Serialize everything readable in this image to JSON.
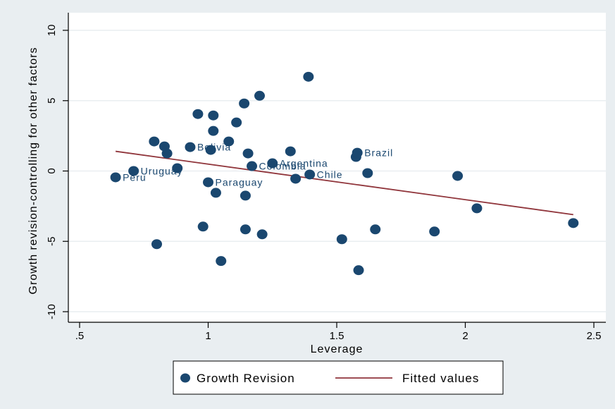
{
  "chart_data": {
    "type": "scatter",
    "xlabel": "Leverage",
    "ylabel": "Growth revision-controlling for other factors",
    "xlim": [
      0.5,
      2.5
    ],
    "ylim": [
      -10,
      10
    ],
    "x_ticks": [
      0.5,
      1,
      1.5,
      2,
      2.5
    ],
    "x_tick_labels": [
      ".5",
      "1",
      "1.5",
      "2",
      "2.5"
    ],
    "y_ticks": [
      -10,
      -5,
      0,
      5,
      10
    ],
    "y_tick_labels": [
      "-10",
      "-5",
      "0",
      "5",
      "10"
    ],
    "grid": "horizontal",
    "legend_position": "bottom",
    "colors": {
      "points": "#1a476f",
      "fit": "#90353b",
      "plot_bg": "#ffffff",
      "outer_bg": "#e9eef1"
    },
    "series": [
      {
        "name": "Growth Revision",
        "kind": "scatter",
        "points": [
          {
            "x": 0.64,
            "y": -0.45,
            "label": "Peru"
          },
          {
            "x": 0.71,
            "y": 0.0,
            "label": "Uruguay"
          },
          {
            "x": 0.79,
            "y": 2.1
          },
          {
            "x": 0.8,
            "y": -5.2
          },
          {
            "x": 0.83,
            "y": 1.75
          },
          {
            "x": 0.84,
            "y": 1.25
          },
          {
            "x": 0.88,
            "y": 0.2
          },
          {
            "x": 0.93,
            "y": 1.7,
            "label": "Bolivia"
          },
          {
            "x": 0.96,
            "y": 4.05
          },
          {
            "x": 0.98,
            "y": -3.95
          },
          {
            "x": 1.0,
            "y": -0.8,
            "label": "Paraguay"
          },
          {
            "x": 1.01,
            "y": 1.5
          },
          {
            "x": 1.02,
            "y": 3.95
          },
          {
            "x": 1.02,
            "y": 2.85
          },
          {
            "x": 1.03,
            "y": -1.55
          },
          {
            "x": 1.05,
            "y": -6.4
          },
          {
            "x": 1.08,
            "y": 2.1
          },
          {
            "x": 1.11,
            "y": 3.45
          },
          {
            "x": 1.14,
            "y": 4.8
          },
          {
            "x": 1.145,
            "y": -4.15
          },
          {
            "x": 1.145,
            "y": -1.75
          },
          {
            "x": 1.155,
            "y": 1.25
          },
          {
            "x": 1.17,
            "y": 0.35,
            "label": "Colombia"
          },
          {
            "x": 1.2,
            "y": 5.35
          },
          {
            "x": 1.21,
            "y": -4.5
          },
          {
            "x": 1.25,
            "y": 0.55,
            "label": "Argentina"
          },
          {
            "x": 1.32,
            "y": 1.4
          },
          {
            "x": 1.34,
            "y": -0.55
          },
          {
            "x": 1.39,
            "y": 6.7
          },
          {
            "x": 1.395,
            "y": -0.25,
            "label": "Chile"
          },
          {
            "x": 1.52,
            "y": -4.85
          },
          {
            "x": 1.575,
            "y": 1.0
          },
          {
            "x": 1.58,
            "y": 1.3,
            "label": "Brazil"
          },
          {
            "x": 1.585,
            "y": -7.05
          },
          {
            "x": 1.62,
            "y": -0.15
          },
          {
            "x": 1.65,
            "y": -4.15
          },
          {
            "x": 1.88,
            "y": -4.3
          },
          {
            "x": 1.97,
            "y": -0.35
          },
          {
            "x": 2.045,
            "y": -2.65
          },
          {
            "x": 2.42,
            "y": -3.7
          }
        ]
      },
      {
        "name": "Fitted values",
        "kind": "line",
        "points": [
          {
            "x": 0.64,
            "y": 1.4
          },
          {
            "x": 2.42,
            "y": -3.1
          }
        ]
      }
    ]
  }
}
